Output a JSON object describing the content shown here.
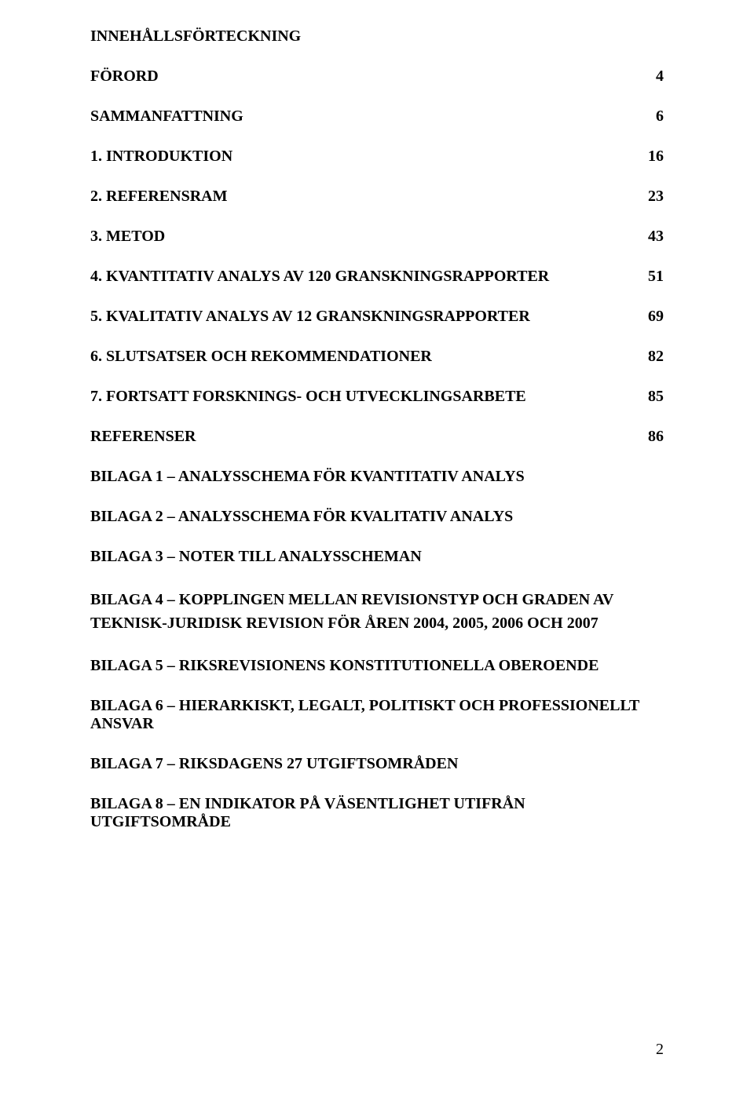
{
  "toc_title": "INNEHÅLLSFÖRTECKNING",
  "entries": [
    {
      "label": "FÖRORD",
      "page": "4"
    },
    {
      "label": "SAMMANFATTNING",
      "page": "6"
    },
    {
      "label": "1. INTRODUKTION",
      "page": "16"
    },
    {
      "label": "2. REFERENSRAM",
      "page": "23"
    },
    {
      "label": "3. METOD",
      "page": "43"
    },
    {
      "label": "4. KVANTITATIV ANALYS AV 120 GRANSKNINGSRAPPORTER",
      "page": "51"
    },
    {
      "label": "5. KVALITATIV ANALYS AV 12 GRANSKNINGSRAPPORTER",
      "page": "69"
    },
    {
      "label": "6. SLUTSATSER OCH REKOMMENDATIONER",
      "page": "82"
    },
    {
      "label": "7. FORTSATT FORSKNINGS- OCH UTVECKLINGSARBETE",
      "page": "85"
    },
    {
      "label": "REFERENSER",
      "page": "86"
    }
  ],
  "entries_nopagenum": [
    "BILAGA 1 – ANALYSSCHEMA FÖR KVANTITATIV ANALYS",
    "BILAGA 2 – ANALYSSCHEMA FÖR KVALITATIV ANALYS",
    "BILAGA 3 – NOTER TILL ANALYSSCHEMAN",
    "BILAGA 4 – KOPPLINGEN MELLAN REVISIONSTYP OCH GRADEN AV TEKNISK-JURIDISK REVISION FÖR ÅREN 2004, 2005, 2006 OCH 2007",
    "BILAGA 5 – RIKSREVISIONENS KONSTITUTIONELLA OBEROENDE",
    "BILAGA 6 – HIERARKISKT, LEGALT, POLITISKT OCH PROFESSIONELLT ANSVAR",
    "BILAGA 7 – RIKSDAGENS 27 UTGIFTSOMRÅDEN",
    "BILAGA 8 –  EN INDIKATOR PÅ VÄSENTLIGHET UTIFRÅN UTGIFTSOMRÅDE"
  ],
  "page_number": "2"
}
